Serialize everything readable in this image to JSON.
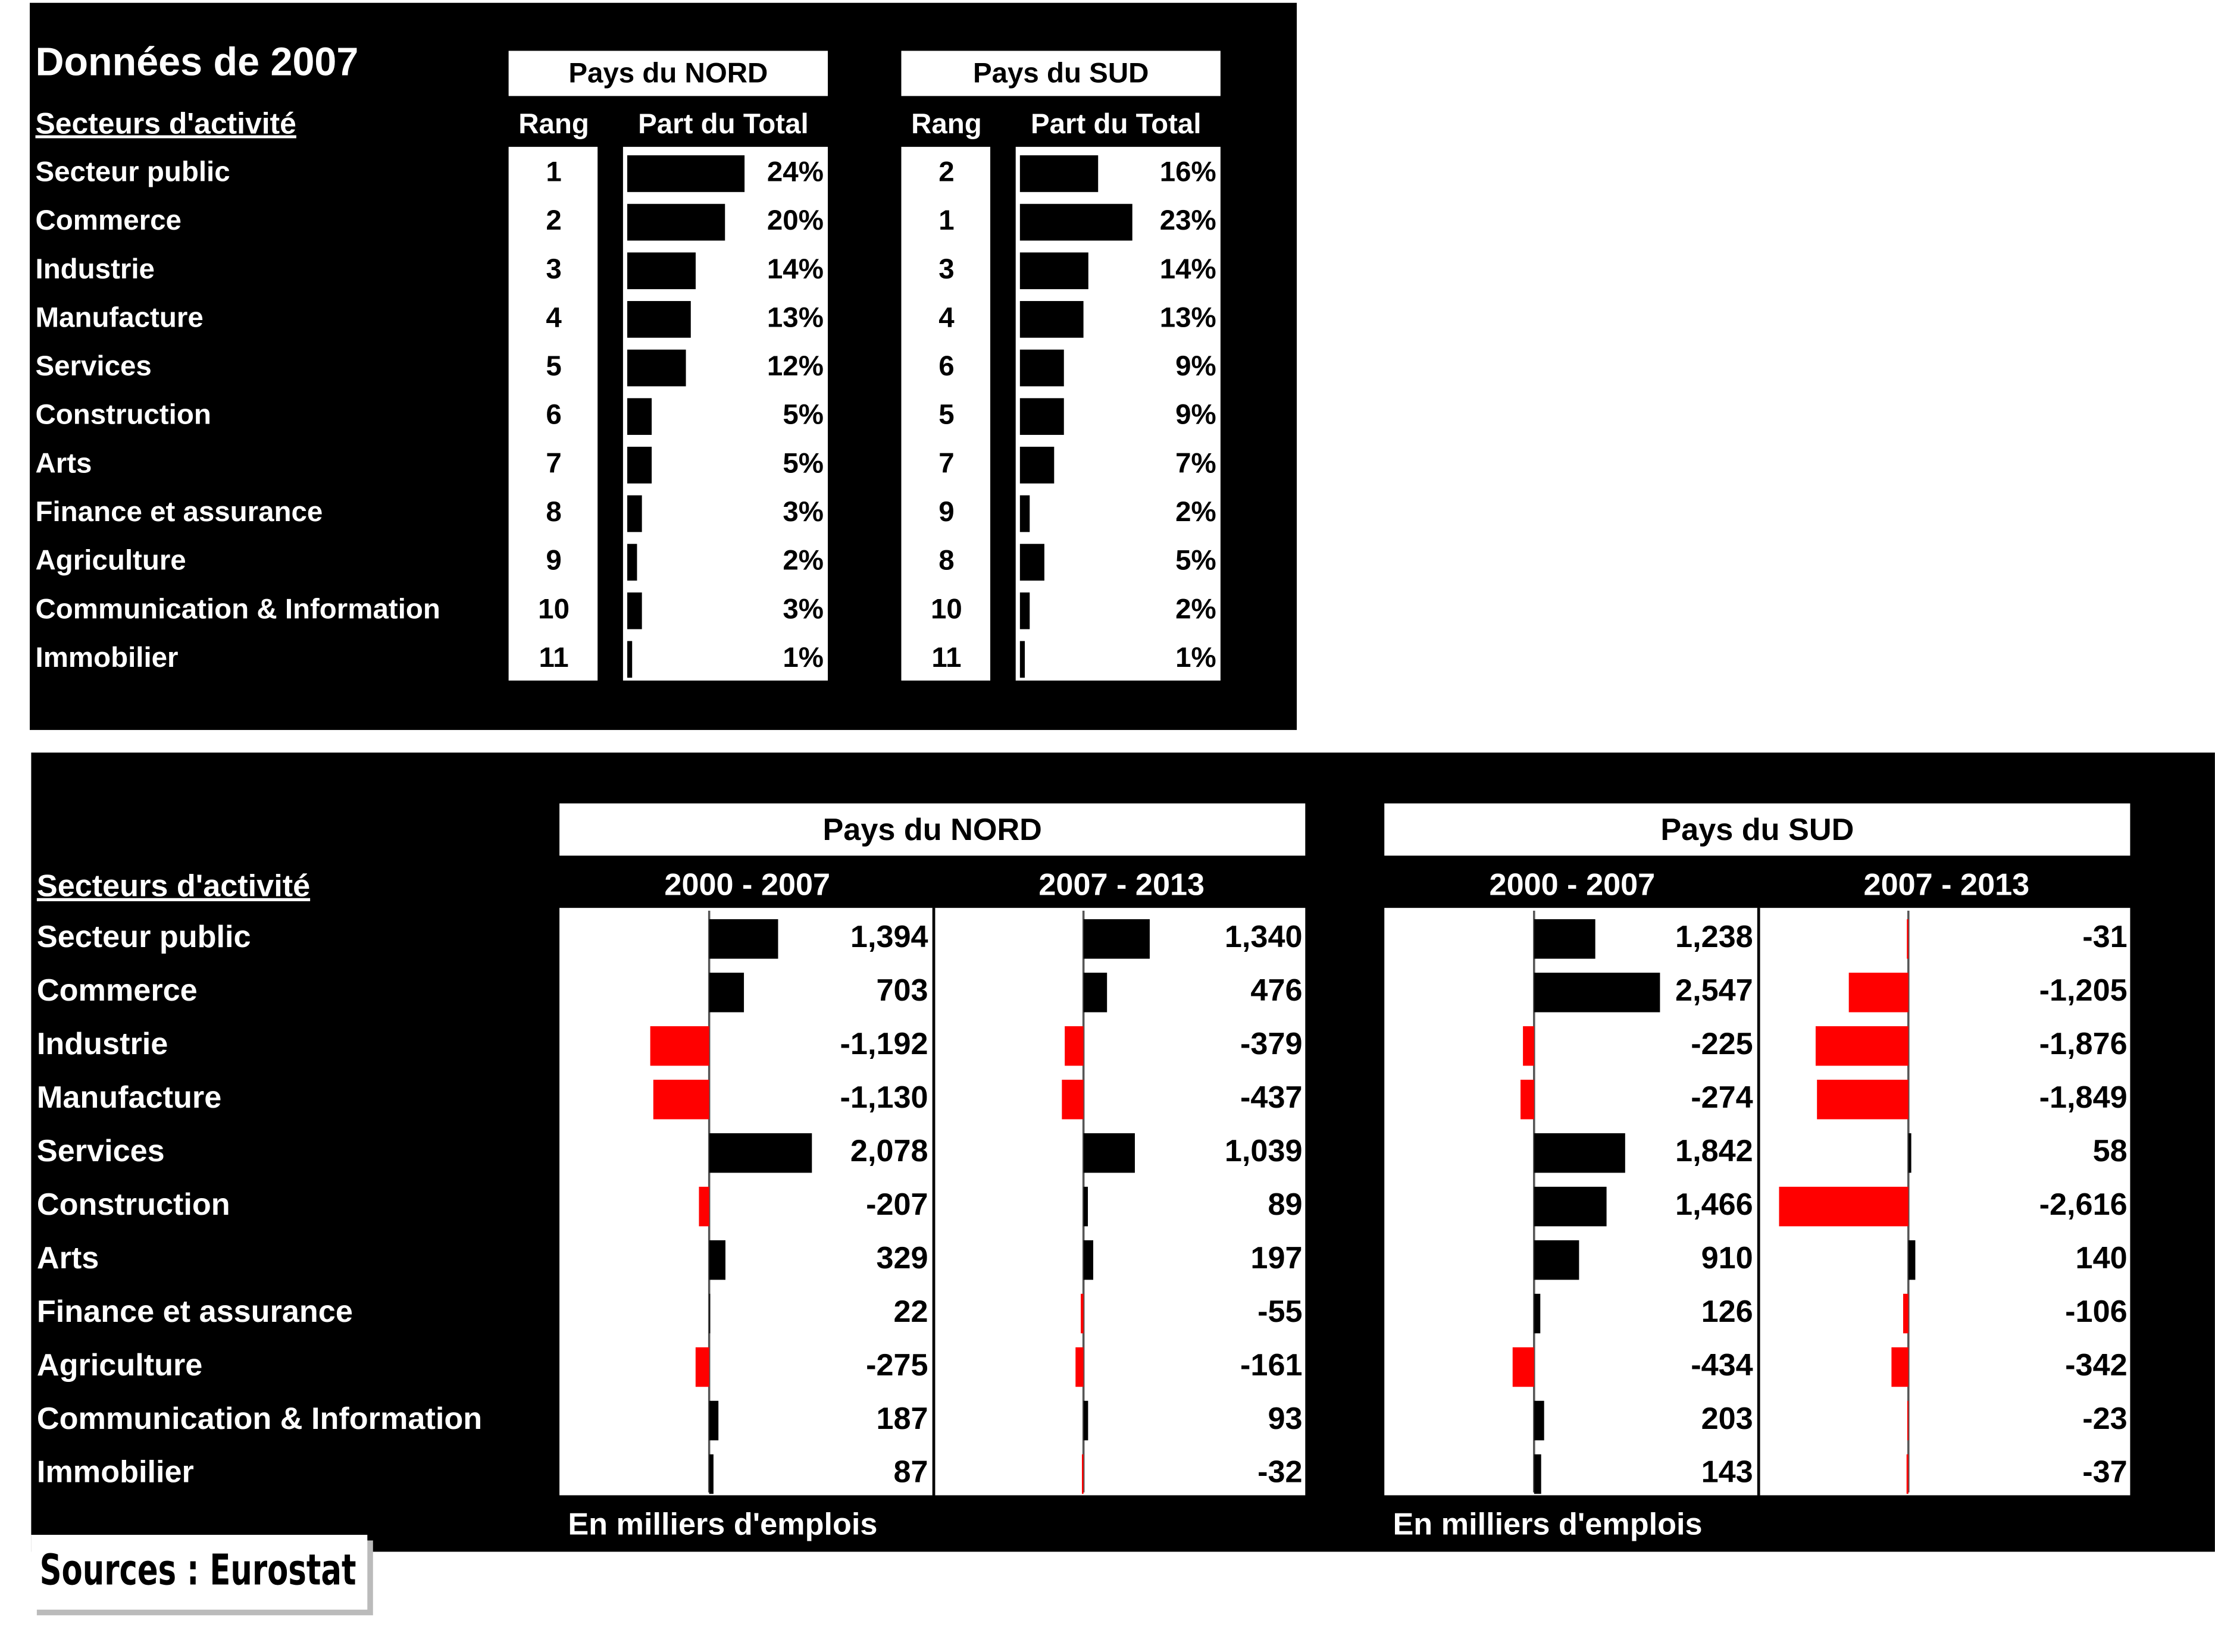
{
  "top": {
    "title": "Données de 2007",
    "sector_header": "Secteurs d'activité",
    "bar_color": "#000000",
    "sectors": [
      "Secteur public",
      "Commerce",
      "Industrie",
      "Manufacture",
      "Services",
      "Construction",
      "Arts",
      "Finance et assurance",
      "Agriculture",
      "Communication & Information",
      "Immobilier"
    ],
    "groups": [
      {
        "name": "Pays du NORD",
        "rank_header": "Rang",
        "share_header": "Part du Total",
        "ranks": [
          1,
          2,
          3,
          4,
          5,
          6,
          7,
          8,
          9,
          10,
          11
        ],
        "values": [
          24,
          20,
          14,
          13,
          12,
          5,
          5,
          3,
          2,
          3,
          1
        ],
        "value_labels": [
          "24%",
          "20%",
          "14%",
          "13%",
          "12%",
          "5%",
          "5%",
          "3%",
          "2%",
          "3%",
          "1%"
        ]
      },
      {
        "name": "Pays du SUD",
        "rank_header": "Rang",
        "share_header": "Part du Total",
        "ranks": [
          2,
          1,
          3,
          4,
          6,
          5,
          7,
          9,
          8,
          10,
          11
        ],
        "values": [
          16,
          23,
          14,
          13,
          9,
          9,
          7,
          2,
          5,
          2,
          1
        ],
        "value_labels": [
          "16%",
          "23%",
          "14%",
          "13%",
          "9%",
          "9%",
          "7%",
          "2%",
          "5%",
          "2%",
          "1%"
        ]
      }
    ]
  },
  "bottom": {
    "sector_header": "Secteurs d'activité",
    "positive_color": "#000000",
    "negative_color": "#ff0000",
    "sectors": [
      "Secteur public",
      "Commerce",
      "Industrie",
      "Manufacture",
      "Services",
      "Construction",
      "Arts",
      "Finance et assurance",
      "Agriculture",
      "Communication & Information",
      "Immobilier"
    ],
    "groups": [
      {
        "name": "Pays du NORD",
        "footnote": "En milliers d'emplois",
        "periods": [
          {
            "name": "2000 - 2007",
            "values": [
              1394,
              703,
              -1192,
              -1130,
              2078,
              -207,
              329,
              22,
              -275,
              187,
              87
            ],
            "value_labels": [
              "1,394",
              "703",
              "-1,192",
              "-1,130",
              "2,078",
              "-207",
              "329",
              "22",
              "-275",
              "187",
              "87"
            ]
          },
          {
            "name": "2007 - 2013",
            "values": [
              1340,
              476,
              -379,
              -437,
              1039,
              89,
              197,
              -55,
              -161,
              93,
              -32
            ],
            "value_labels": [
              "1,340",
              "476",
              "-379",
              "-437",
              "1,039",
              "89",
              "197",
              "-55",
              "-161",
              "93",
              "-32"
            ]
          }
        ]
      },
      {
        "name": "Pays du SUD",
        "footnote": "En milliers d'emplois",
        "periods": [
          {
            "name": "2000 - 2007",
            "values": [
              1238,
              2547,
              -225,
              -274,
              1842,
              1466,
              910,
              126,
              -434,
              203,
              143
            ],
            "value_labels": [
              "1,238",
              "2,547",
              "-225",
              "-274",
              "1,842",
              "1,466",
              "910",
              "126",
              "-434",
              "203",
              "143"
            ]
          },
          {
            "name": "2007 - 2013",
            "values": [
              -31,
              -1205,
              -1876,
              -1849,
              58,
              -2616,
              140,
              -106,
              -342,
              -23,
              -37
            ],
            "value_labels": [
              "-31",
              "-1,205",
              "-1,876",
              "-1,849",
              "58",
              "-2,616",
              "140",
              "-106",
              "-342",
              "-23",
              "-37"
            ]
          }
        ]
      }
    ]
  },
  "source": "Sources : Eurostat"
}
